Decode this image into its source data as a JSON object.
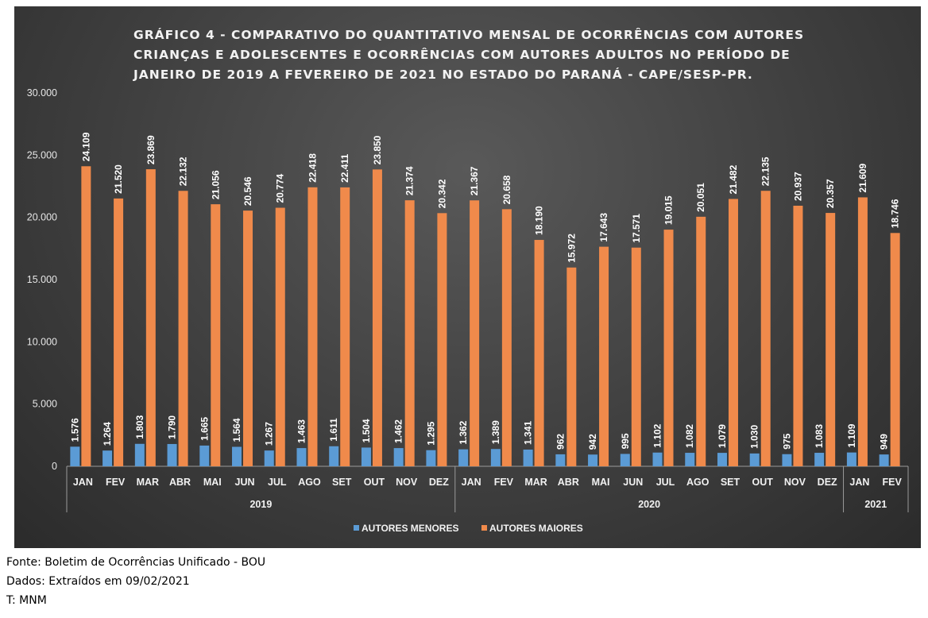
{
  "chart_data": {
    "type": "bar",
    "title": "GRÁFICO 4 - COMPARATIVO DO QUANTITATIVO MENSAL DE OCORRÊNCIAS COM AUTORES CRIANÇAS E ADOLESCENTES E OCORRÊNCIAS COM AUTORES ADULTOS NO PERÍODO DE JANEIRO DE 2019 A FEVEREIRO DE 2021 NO ESTADO DO PARANÁ - CAPE/SESP-PR.",
    "categories": [
      "JAN",
      "FEV",
      "MAR",
      "ABR",
      "MAI",
      "JUN",
      "JUL",
      "AGO",
      "SET",
      "OUT",
      "NOV",
      "DEZ",
      "JAN",
      "FEV",
      "MAR",
      "ABR",
      "MAI",
      "JUN",
      "JUL",
      "AGO",
      "SET",
      "OUT",
      "NOV",
      "DEZ",
      "JAN",
      "FEV"
    ],
    "groups": [
      {
        "label": "2019",
        "count": 12
      },
      {
        "label": "2020",
        "count": 12
      },
      {
        "label": "2021",
        "count": 2
      }
    ],
    "series": [
      {
        "name": "AUTORES MENORES",
        "color": "#5b9bd5",
        "values": [
          1576,
          1264,
          1803,
          1790,
          1665,
          1564,
          1267,
          1463,
          1611,
          1504,
          1462,
          1295,
          1362,
          1389,
          1341,
          962,
          942,
          995,
          1102,
          1082,
          1079,
          1030,
          975,
          1083,
          1109,
          949
        ],
        "labels": [
          "1.576",
          "1.264",
          "1.803",
          "1.790",
          "1.665",
          "1.564",
          "1.267",
          "1.463",
          "1.611",
          "1.504",
          "1.462",
          "1.295",
          "1.362",
          "1.389",
          "1.341",
          "962",
          "942",
          "995",
          "1.102",
          "1.082",
          "1.079",
          "1.030",
          "975",
          "1.083",
          "1.109",
          "949"
        ]
      },
      {
        "name": "AUTORES MAIORES",
        "color": "#f08a4b",
        "values": [
          24109,
          21520,
          23869,
          22132,
          21056,
          20546,
          20774,
          22418,
          22411,
          23850,
          21374,
          20342,
          21367,
          20658,
          18190,
          15972,
          17643,
          17571,
          19015,
          20051,
          21482,
          22135,
          20937,
          20357,
          21609,
          18746
        ],
        "labels": [
          "24.109",
          "21.520",
          "23.869",
          "22.132",
          "21.056",
          "20.546",
          "20.774",
          "22.418",
          "22.411",
          "23.850",
          "21.374",
          "20.342",
          "21.367",
          "20.658",
          "18.190",
          "15.972",
          "17.643",
          "17.571",
          "19.015",
          "20.051",
          "21.482",
          "22.135",
          "20.937",
          "20.357",
          "21.609",
          "18.746"
        ]
      }
    ],
    "ylim": [
      0,
      30000
    ],
    "yticks": [
      0,
      5000,
      10000,
      15000,
      20000,
      25000,
      30000
    ],
    "ytick_labels": [
      "0",
      "5.000",
      "10.000",
      "15.000",
      "20.000",
      "25.000",
      "30.000"
    ],
    "grid": false,
    "legend_position": "bottom"
  },
  "footer": {
    "source": "Fonte: Boletim de Ocorrências Unificado - BOU",
    "data_note": "Dados: Extraídos em 09/02/2021",
    "author": "T: MNM"
  }
}
